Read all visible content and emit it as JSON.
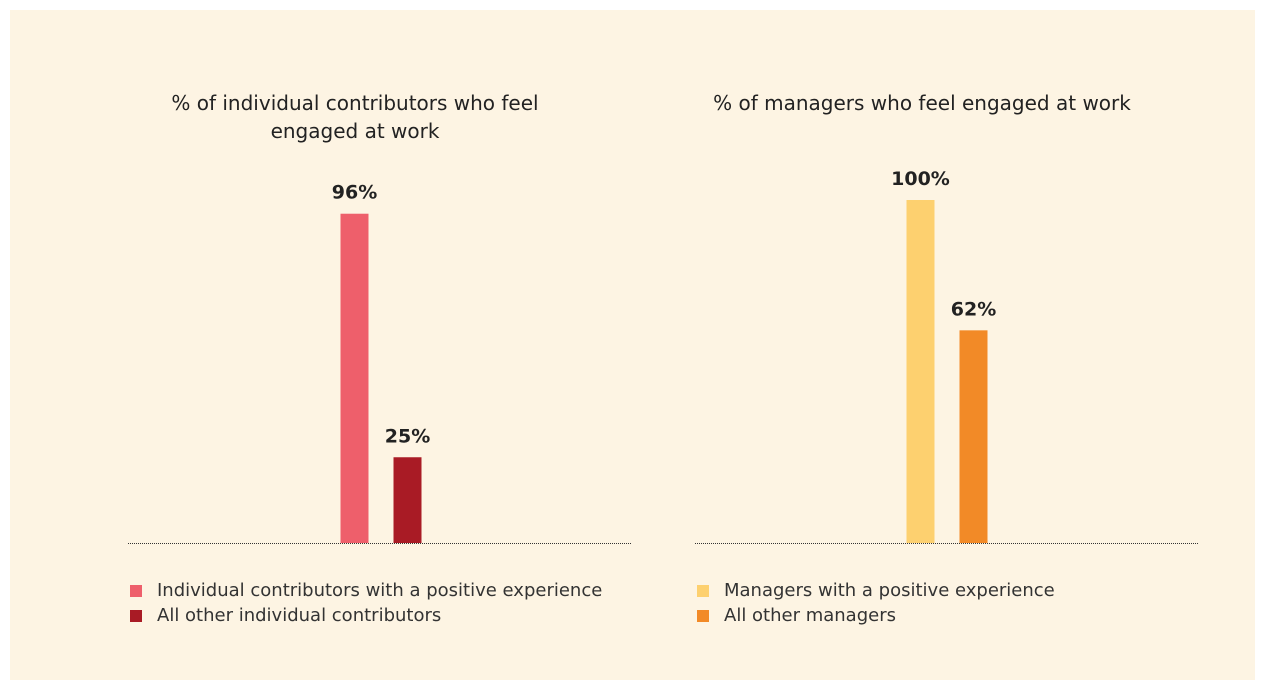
{
  "chart_data": [
    {
      "type": "bar",
      "title": "% of individual contributors who feel engaged at work",
      "ylim": [
        0,
        100
      ],
      "series": [
        {
          "name": "Individual contributors with a positive experience",
          "color": "#ee5f6b",
          "values": [
            96
          ],
          "value_labels": [
            "96%"
          ]
        },
        {
          "name": "All other individual contributors",
          "color": "#a91b25",
          "values": [
            25
          ],
          "value_labels": [
            "25%"
          ]
        }
      ]
    },
    {
      "type": "bar",
      "title": "% of managers who feel engaged at work",
      "ylim": [
        0,
        100
      ],
      "series": [
        {
          "name": "Managers with a positive experience",
          "color": "#fdd06f",
          "values": [
            100
          ],
          "value_labels": [
            "100%"
          ]
        },
        {
          "name": "All other managers",
          "color": "#f28a27",
          "values": [
            62
          ],
          "value_labels": [
            "62%"
          ]
        }
      ]
    }
  ]
}
